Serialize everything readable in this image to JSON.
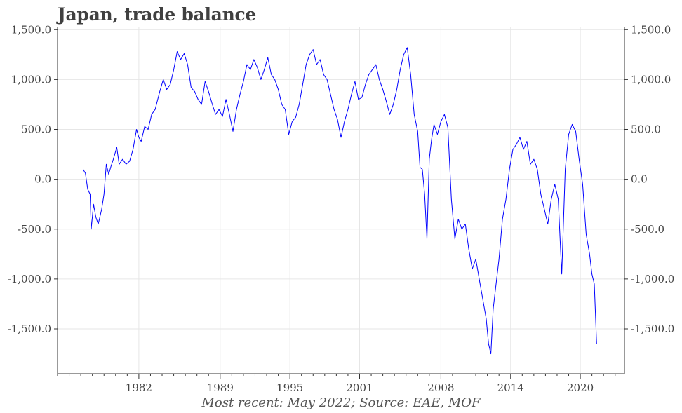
{
  "chart_data": {
    "type": "line",
    "title": "Japan, trade balance",
    "caption": "Most recent: May 2022; Source: EAE, MOF",
    "xlabel": "",
    "ylabel": "",
    "grid": true,
    "line_color": "#0000ff",
    "xlim": [
      1975.0,
      2023.8
    ],
    "ylim": [
      -1950,
      1530
    ],
    "x_ticks": [
      1982,
      1989,
      1995,
      2001,
      2008,
      2014,
      2020
    ],
    "x_tick_labels": [
      "1982",
      "1989",
      "1995",
      "2001",
      "2008",
      "2014",
      "2020"
    ],
    "y_ticks": [
      1500,
      1000,
      500,
      0,
      -500,
      -1000,
      -1500
    ],
    "y_tick_labels": [
      "1,500.0",
      "1,000.0",
      "500.0",
      "0.0",
      "-500.0",
      "-1,000.0",
      "-1,500.0"
    ],
    "series": [
      {
        "values": [
          [
            1977.2,
            100
          ],
          [
            1977.4,
            60
          ],
          [
            1977.6,
            -100
          ],
          [
            1977.8,
            -150
          ],
          [
            1977.9,
            -500
          ],
          [
            1978.1,
            -250
          ],
          [
            1978.3,
            -380
          ],
          [
            1978.5,
            -450
          ],
          [
            1978.8,
            -300
          ],
          [
            1979.0,
            -150
          ],
          [
            1979.2,
            150
          ],
          [
            1979.4,
            50
          ],
          [
            1979.6,
            130
          ],
          [
            1979.8,
            200
          ],
          [
            1980.1,
            320
          ],
          [
            1980.3,
            150
          ],
          [
            1980.6,
            200
          ],
          [
            1980.9,
            150
          ],
          [
            1981.2,
            180
          ],
          [
            1981.5,
            300
          ],
          [
            1981.8,
            500
          ],
          [
            1982.0,
            420
          ],
          [
            1982.2,
            380
          ],
          [
            1982.5,
            530
          ],
          [
            1982.8,
            500
          ],
          [
            1983.1,
            650
          ],
          [
            1983.4,
            700
          ],
          [
            1983.8,
            880
          ],
          [
            1984.1,
            1000
          ],
          [
            1984.4,
            900
          ],
          [
            1984.7,
            950
          ],
          [
            1985.0,
            1100
          ],
          [
            1985.3,
            1280
          ],
          [
            1985.6,
            1200
          ],
          [
            1985.9,
            1260
          ],
          [
            1986.2,
            1150
          ],
          [
            1986.5,
            920
          ],
          [
            1986.8,
            880
          ],
          [
            1987.1,
            800
          ],
          [
            1987.4,
            750
          ],
          [
            1987.7,
            980
          ],
          [
            1988.0,
            880
          ],
          [
            1988.3,
            760
          ],
          [
            1988.6,
            650
          ],
          [
            1988.9,
            700
          ],
          [
            1989.2,
            630
          ],
          [
            1989.5,
            800
          ],
          [
            1989.8,
            650
          ],
          [
            1990.1,
            480
          ],
          [
            1990.4,
            700
          ],
          [
            1990.7,
            850
          ],
          [
            1991.0,
            980
          ],
          [
            1991.3,
            1150
          ],
          [
            1991.6,
            1100
          ],
          [
            1991.9,
            1200
          ],
          [
            1992.2,
            1120
          ],
          [
            1992.5,
            1000
          ],
          [
            1992.8,
            1100
          ],
          [
            1993.1,
            1220
          ],
          [
            1993.4,
            1050
          ],
          [
            1993.7,
            1000
          ],
          [
            1994.0,
            900
          ],
          [
            1994.3,
            750
          ],
          [
            1994.6,
            700
          ],
          [
            1994.9,
            450
          ],
          [
            1995.2,
            580
          ],
          [
            1995.5,
            620
          ],
          [
            1995.8,
            750
          ],
          [
            1996.1,
            950
          ],
          [
            1996.4,
            1150
          ],
          [
            1996.7,
            1250
          ],
          [
            1997.0,
            1300
          ],
          [
            1997.3,
            1150
          ],
          [
            1997.6,
            1200
          ],
          [
            1997.9,
            1050
          ],
          [
            1998.2,
            1000
          ],
          [
            1998.5,
            850
          ],
          [
            1998.8,
            700
          ],
          [
            1999.1,
            600
          ],
          [
            1999.4,
            420
          ],
          [
            1999.7,
            580
          ],
          [
            2000.0,
            700
          ],
          [
            2000.3,
            850
          ],
          [
            2000.6,
            980
          ],
          [
            2000.9,
            800
          ],
          [
            2001.2,
            820
          ],
          [
            2001.5,
            950
          ],
          [
            2001.8,
            1050
          ],
          [
            2002.1,
            1100
          ],
          [
            2002.4,
            1150
          ],
          [
            2002.7,
            1000
          ],
          [
            2003.0,
            900
          ],
          [
            2003.3,
            780
          ],
          [
            2003.6,
            650
          ],
          [
            2003.9,
            750
          ],
          [
            2004.2,
            900
          ],
          [
            2004.5,
            1100
          ],
          [
            2004.8,
            1250
          ],
          [
            2005.1,
            1320
          ],
          [
            2005.4,
            1050
          ],
          [
            2005.7,
            650
          ],
          [
            2006.0,
            480
          ],
          [
            2006.2,
            120
          ],
          [
            2006.4,
            100
          ],
          [
            2006.6,
            -150
          ],
          [
            2006.8,
            -600
          ],
          [
            2007.0,
            200
          ],
          [
            2007.2,
            400
          ],
          [
            2007.4,
            550
          ],
          [
            2007.7,
            450
          ],
          [
            2008.0,
            580
          ],
          [
            2008.3,
            650
          ],
          [
            2008.6,
            520
          ],
          [
            2008.9,
            -200
          ],
          [
            2009.2,
            -600
          ],
          [
            2009.5,
            -400
          ],
          [
            2009.8,
            -500
          ],
          [
            2010.1,
            -450
          ],
          [
            2010.4,
            -700
          ],
          [
            2010.7,
            -900
          ],
          [
            2011.0,
            -800
          ],
          [
            2011.3,
            -1000
          ],
          [
            2011.6,
            -1200
          ],
          [
            2011.9,
            -1400
          ],
          [
            2012.1,
            -1650
          ],
          [
            2012.3,
            -1750
          ],
          [
            2012.5,
            -1300
          ],
          [
            2012.7,
            -1100
          ],
          [
            2013.0,
            -800
          ],
          [
            2013.3,
            -400
          ],
          [
            2013.6,
            -200
          ],
          [
            2013.9,
            100
          ],
          [
            2014.2,
            300
          ],
          [
            2014.5,
            350
          ],
          [
            2014.8,
            420
          ],
          [
            2015.1,
            300
          ],
          [
            2015.4,
            380
          ],
          [
            2015.7,
            150
          ],
          [
            2016.0,
            200
          ],
          [
            2016.3,
            100
          ],
          [
            2016.6,
            -150
          ],
          [
            2016.9,
            -300
          ],
          [
            2017.2,
            -450
          ],
          [
            2017.5,
            -200
          ],
          [
            2017.8,
            -50
          ],
          [
            2018.1,
            -200
          ],
          [
            2018.4,
            -950
          ],
          [
            2018.7,
            100
          ],
          [
            2019.0,
            450
          ],
          [
            2019.3,
            550
          ],
          [
            2019.6,
            480
          ],
          [
            2019.9,
            200
          ],
          [
            2020.2,
            -50
          ],
          [
            2020.5,
            -550
          ],
          [
            2020.8,
            -750
          ],
          [
            2021.0,
            -950
          ],
          [
            2021.2,
            -1050
          ],
          [
            2021.4,
            -1650
          ]
        ]
      }
    ]
  }
}
